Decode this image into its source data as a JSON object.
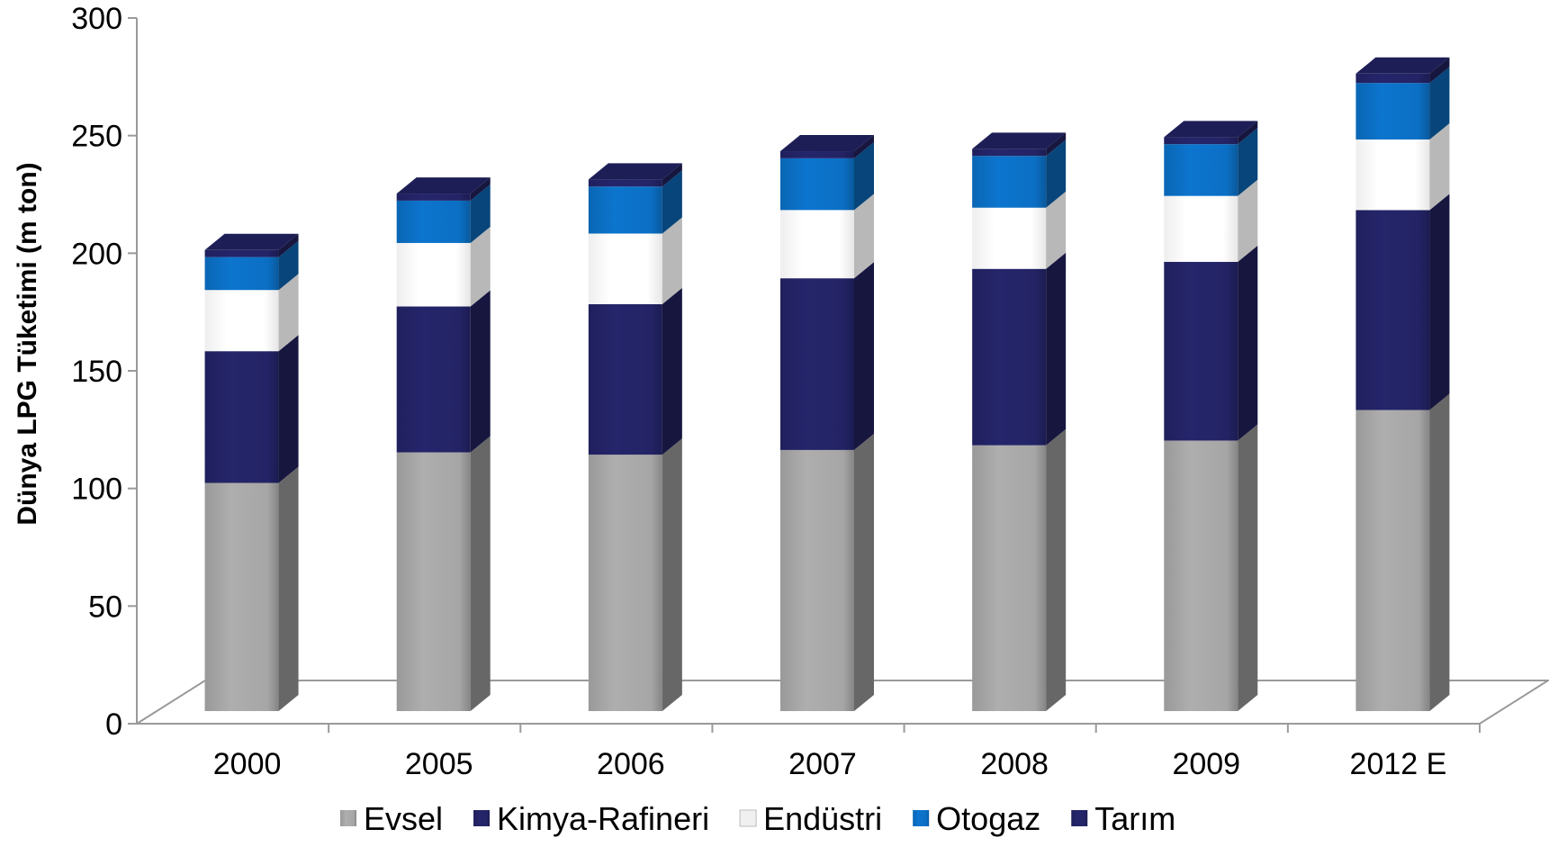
{
  "chart_data": {
    "type": "bar",
    "stacked": true,
    "three_d": true,
    "ylabel": "Dünya LPG Tüketimi  (m ton)",
    "ylim": [
      0,
      300
    ],
    "yticks": [
      "0",
      "50",
      "100",
      "150",
      "200",
      "250",
      "300"
    ],
    "categories": [
      "2000",
      "2005",
      "2006",
      "2007",
      "2008",
      "2009",
      "2012 E"
    ],
    "series": [
      {
        "name": "Evsel",
        "color": "#a6a6a6",
        "values": [
          97,
          110,
          109,
          111,
          113,
          115,
          128
        ]
      },
      {
        "name": "Kimya-Rafineri",
        "color": "#232366",
        "values": [
          56,
          62,
          64,
          73,
          75,
          76,
          85
        ]
      },
      {
        "name": "Endüstri",
        "color": "#ffffff",
        "values": [
          26,
          27,
          30,
          29,
          26,
          28,
          30
        ]
      },
      {
        "name": "Otogaz",
        "color": "#0b6fc4",
        "values": [
          14,
          18,
          20,
          22,
          22,
          22,
          24
        ]
      },
      {
        "name": "Tarım",
        "color": "#232366",
        "values": [
          3,
          3,
          3,
          3,
          3,
          3,
          4
        ]
      }
    ],
    "legend_position": "bottom",
    "grid": false
  }
}
